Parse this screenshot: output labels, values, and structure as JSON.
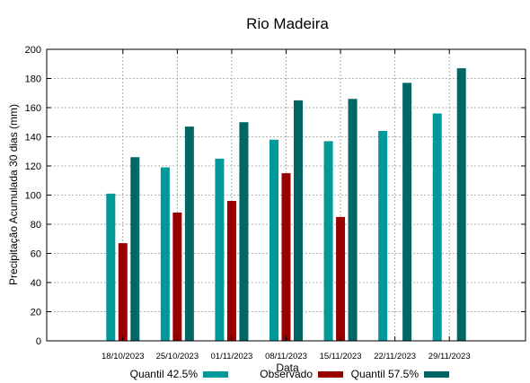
{
  "chart_data": {
    "type": "bar",
    "title": "Rio Madeira",
    "xlabel": "Data",
    "ylabel": "Precipitação Acumulada 30 dias (mm)",
    "ylim": [
      0,
      200
    ],
    "yticks": [
      0,
      20,
      40,
      60,
      80,
      100,
      120,
      140,
      160,
      180,
      200
    ],
    "grid": true,
    "legend_position": "bottom",
    "categories": [
      "18/10/2023",
      "25/10/2023",
      "01/11/2023",
      "08/11/2023",
      "15/11/2023",
      "22/11/2023",
      "29/11/2023"
    ],
    "series": [
      {
        "name": "Quantil 42.5%",
        "color": "#009999",
        "values": [
          101,
          119,
          125,
          138,
          137,
          144,
          156
        ]
      },
      {
        "name": "Observado",
        "color": "#990000",
        "values": [
          67,
          88,
          96,
          115,
          85,
          null,
          null
        ]
      },
      {
        "name": "Quantil 57.5%",
        "color": "#006666",
        "values": [
          126,
          147,
          150,
          165,
          166,
          177,
          187
        ]
      }
    ]
  }
}
